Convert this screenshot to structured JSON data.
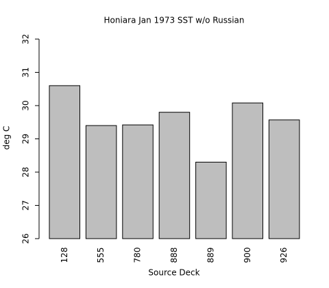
{
  "chart_data": {
    "type": "bar",
    "title": "Honiara Jan 1973 SST w/o Russian",
    "x_label": "Source Deck",
    "y_label": "deg C",
    "categories": [
      "128",
      "555",
      "780",
      "888",
      "889",
      "900",
      "926"
    ],
    "values": [
      30.6,
      29.4,
      29.42,
      29.8,
      28.3,
      30.08,
      29.57
    ],
    "color": "#bebebe",
    "ylim": [
      26,
      32
    ],
    "yticks": [
      26,
      27,
      28,
      29,
      30,
      31,
      32
    ],
    "grid": false
  }
}
